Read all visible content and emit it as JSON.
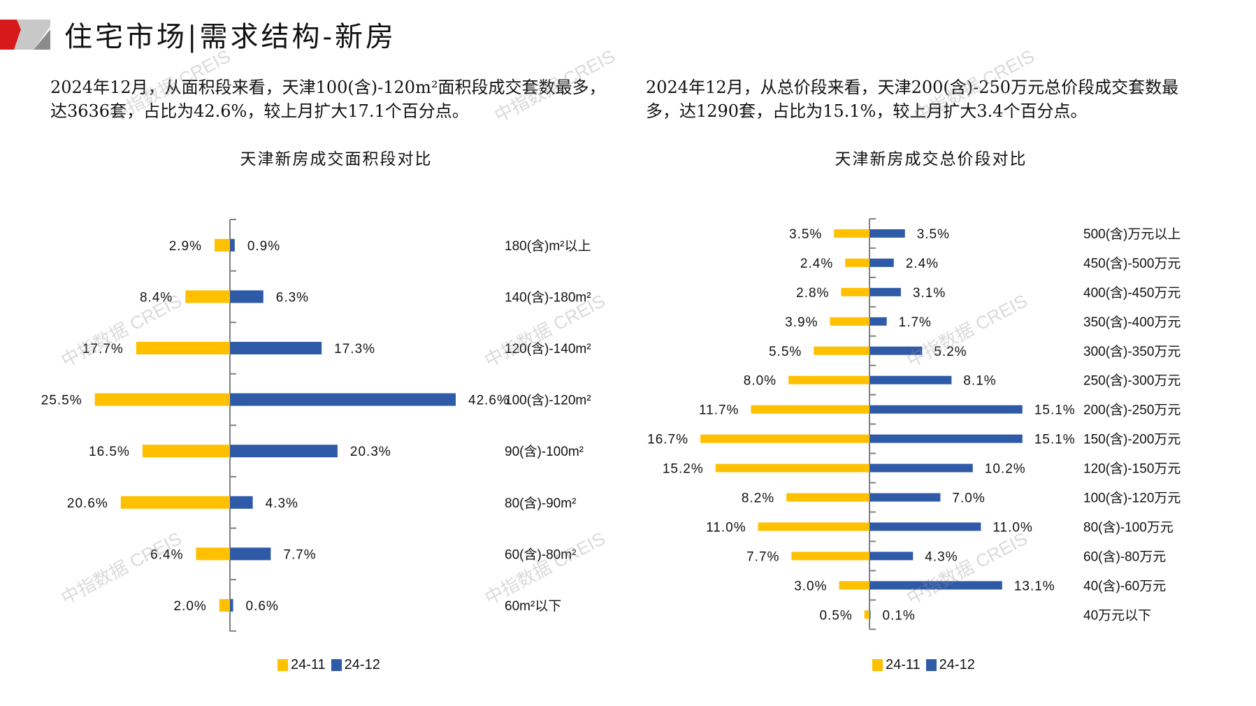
{
  "header": {
    "title": "住宅市场|需求结构-新房",
    "logo_colors": {
      "red": "#d7191c",
      "light_gray": "#c8c8c8",
      "dark_gray": "#8c8c8c"
    }
  },
  "summaries": {
    "left": "2024年12月，从面积段来看，天津100(含)-120m²面积段成交套数最多，达3636套，占比为42.6%，较上月扩大17.1个百分点。",
    "right": "2024年12月，从总价段来看，天津200(含)-250万元总价段成交套数最多，达1290套，占比为15.1%，较上月扩大3.4个百分点。"
  },
  "watermark": "中指数据 CREIS",
  "colors": {
    "series_prev": "#FFC000",
    "series_curr": "#2F5AA8",
    "axis": "#808080"
  },
  "chart_data": [
    {
      "type": "bar",
      "orientation": "horizontal-butterfly",
      "title": "天津新房成交面积段对比",
      "categories": [
        "180(含)m²以上",
        "140(含)-180m²",
        "120(含)-140m²",
        "100(含)-120m²",
        "90(含)-100m²",
        "80(含)-90m²",
        "60(含)-80m²",
        "60m²以下"
      ],
      "series": [
        {
          "name": "24-11",
          "side": "left",
          "values": [
            2.9,
            8.4,
            17.7,
            25.5,
            16.5,
            20.6,
            6.4,
            2.0
          ],
          "labels": [
            "2.9%",
            "8.4%",
            "17.7%",
            "25.5%",
            "16.5%",
            "20.6%",
            "6.4%",
            "2.0%"
          ]
        },
        {
          "name": "24-12",
          "side": "right",
          "values": [
            0.9,
            6.3,
            17.3,
            42.6,
            20.3,
            4.3,
            7.7,
            0.6
          ],
          "labels": [
            "0.9%",
            "6.3%",
            "17.3%",
            "42.6%",
            "20.3%",
            "4.3%",
            "7.7%",
            "0.6%"
          ]
        }
      ],
      "unit": "%",
      "xlim": [
        -42.6,
        42.6
      ],
      "grid": false,
      "legend": "bottom-center",
      "xlabel": "",
      "ylabel": ""
    },
    {
      "type": "bar",
      "orientation": "horizontal-butterfly",
      "title": "天津新房成交总价段对比",
      "categories": [
        "500(含)万元以上",
        "450(含)-500万元",
        "400(含)-450万元",
        "350(含)-400万元",
        "300(含)-350万元",
        "250(含)-300万元",
        "200(含)-250万元",
        "150(含)-200万元",
        "120(含)-150万元",
        "100(含)-120万元",
        "80(含)-100万元",
        "60(含)-80万元",
        "40(含)-60万元",
        "40万元以下"
      ],
      "series": [
        {
          "name": "24-11",
          "side": "left",
          "values": [
            3.5,
            2.4,
            2.8,
            3.9,
            5.5,
            8.0,
            11.7,
            16.7,
            15.2,
            8.2,
            11.0,
            7.7,
            3.0,
            0.5
          ],
          "labels": [
            "3.5%",
            "2.4%",
            "2.8%",
            "3.9%",
            "5.5%",
            "8.0%",
            "11.7%",
            "16.7%",
            "15.2%",
            "8.2%",
            "11.0%",
            "7.7%",
            "3.0%",
            "0.5%"
          ]
        },
        {
          "name": "24-12",
          "side": "right",
          "values": [
            3.5,
            2.4,
            3.1,
            1.7,
            5.2,
            8.1,
            15.1,
            15.1,
            10.2,
            7.0,
            11.0,
            4.3,
            13.1,
            0.1
          ],
          "labels": [
            "3.5%",
            "2.4%",
            "3.1%",
            "1.7%",
            "5.2%",
            "8.1%",
            "15.1%",
            "15.1%",
            "10.2%",
            "7.0%",
            "11.0%",
            "4.3%",
            "13.1%",
            "0.1%"
          ]
        }
      ],
      "unit": "%",
      "xlim": [
        -16.7,
        16.7
      ],
      "grid": false,
      "legend": "bottom-center",
      "xlabel": "",
      "ylabel": ""
    }
  ]
}
